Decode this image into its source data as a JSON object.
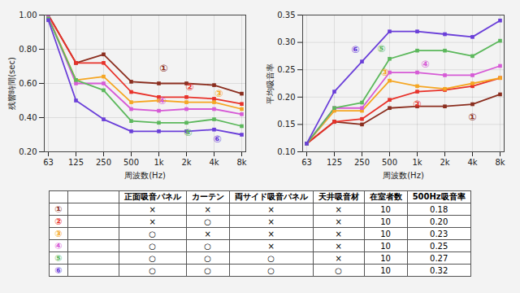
{
  "chart_data": [
    {
      "type": "line",
      "x_label": "周波数(Hz)",
      "y_label": "残響時間(sec)",
      "categories": [
        "63",
        "125",
        "250",
        "500",
        "1k",
        "2k",
        "4k",
        "8k"
      ],
      "ylim": [
        0.2,
        1.0
      ],
      "yticks": [
        {
          "value": 0.2,
          "label": "0.20"
        },
        {
          "value": 0.4,
          "label": "0.40"
        },
        {
          "value": 0.6,
          "label": "0.60"
        },
        {
          "value": 0.8,
          "label": "0.80"
        },
        {
          "value": 1.0,
          "label": "1.00"
        }
      ],
      "grid": true,
      "marker": "square",
      "series": [
        {
          "name": "①",
          "color": "#8b2e1f",
          "values": [
            1.0,
            0.72,
            0.77,
            0.61,
            0.6,
            0.6,
            0.59,
            0.54
          ]
        },
        {
          "name": "②",
          "color": "#e8322a",
          "values": [
            1.0,
            0.72,
            0.72,
            0.55,
            0.52,
            0.52,
            0.51,
            0.48
          ]
        },
        {
          "name": "③",
          "color": "#f5a623",
          "values": [
            0.99,
            0.62,
            0.64,
            0.49,
            0.5,
            0.49,
            0.49,
            0.45
          ]
        },
        {
          "name": "④",
          "color": "#d65ad6",
          "values": [
            0.99,
            0.6,
            0.6,
            0.45,
            0.44,
            0.45,
            0.45,
            0.42
          ]
        },
        {
          "name": "⑤",
          "color": "#5cb85c",
          "values": [
            0.98,
            0.62,
            0.56,
            0.38,
            0.37,
            0.37,
            0.39,
            0.35
          ]
        },
        {
          "name": "⑥",
          "color": "#6a3fd9",
          "values": [
            0.97,
            0.5,
            0.39,
            0.32,
            0.32,
            0.32,
            0.33,
            0.3
          ]
        }
      ]
    },
    {
      "type": "line",
      "x_label": "周波数(Hz)",
      "y_label": "平均吸音率",
      "categories": [
        "63",
        "125",
        "250",
        "500",
        "1k",
        "2k",
        "4k",
        "8k"
      ],
      "ylim": [
        0.1,
        0.35
      ],
      "yticks": [
        {
          "value": 0.1,
          "label": "0.10"
        },
        0.15,
        {
          "value": 0.2,
          "label": "0.20"
        },
        0.25,
        {
          "value": 0.3,
          "label": "0.30"
        },
        0.35
      ],
      "grid": true,
      "marker": "square",
      "series": [
        {
          "name": "①",
          "color": "#8b2e1f",
          "values": [
            0.115,
            0.155,
            0.15,
            0.18,
            0.183,
            0.183,
            0.187,
            0.205
          ]
        },
        {
          "name": "②",
          "color": "#e8322a",
          "values": [
            0.115,
            0.155,
            0.16,
            0.195,
            0.21,
            0.213,
            0.22,
            0.235
          ]
        },
        {
          "name": "③",
          "color": "#f5a623",
          "values": [
            0.115,
            0.175,
            0.175,
            0.23,
            0.22,
            0.215,
            0.225,
            0.235
          ]
        },
        {
          "name": "④",
          "color": "#d65ad6",
          "values": [
            0.115,
            0.18,
            0.18,
            0.245,
            0.245,
            0.24,
            0.24,
            0.257
          ]
        },
        {
          "name": "⑤",
          "color": "#5cb85c",
          "values": [
            0.115,
            0.18,
            0.19,
            0.27,
            0.285,
            0.285,
            0.275,
            0.303
          ]
        },
        {
          "name": "⑥",
          "color": "#6a3fd9",
          "values": [
            0.115,
            0.21,
            0.265,
            0.32,
            0.32,
            0.315,
            0.31,
            0.34
          ]
        }
      ]
    }
  ],
  "table": {
    "header": [
      null,
      null,
      "正面吸音パネル",
      "カーテン",
      "両サイド吸音パネル",
      "天井吸音材",
      "在室者数",
      "500Hz吸音率"
    ],
    "rows": [
      [
        "①",
        null,
        "×",
        "×",
        "×",
        "×",
        "10",
        "0.18"
      ],
      [
        "②",
        null,
        "×",
        "○",
        "×",
        "×",
        "10",
        "0.20"
      ],
      [
        "③",
        null,
        "○",
        "×",
        "×",
        "×",
        "10",
        "0.23"
      ],
      [
        "④",
        null,
        "○",
        "○",
        "×",
        "×",
        "10",
        "0.25"
      ],
      [
        "⑤",
        null,
        "○",
        "○",
        "○",
        "×",
        "10",
        "0.27"
      ],
      [
        "⑥",
        null,
        "○",
        "○",
        "○",
        "○",
        "10",
        "0.32"
      ]
    ]
  }
}
